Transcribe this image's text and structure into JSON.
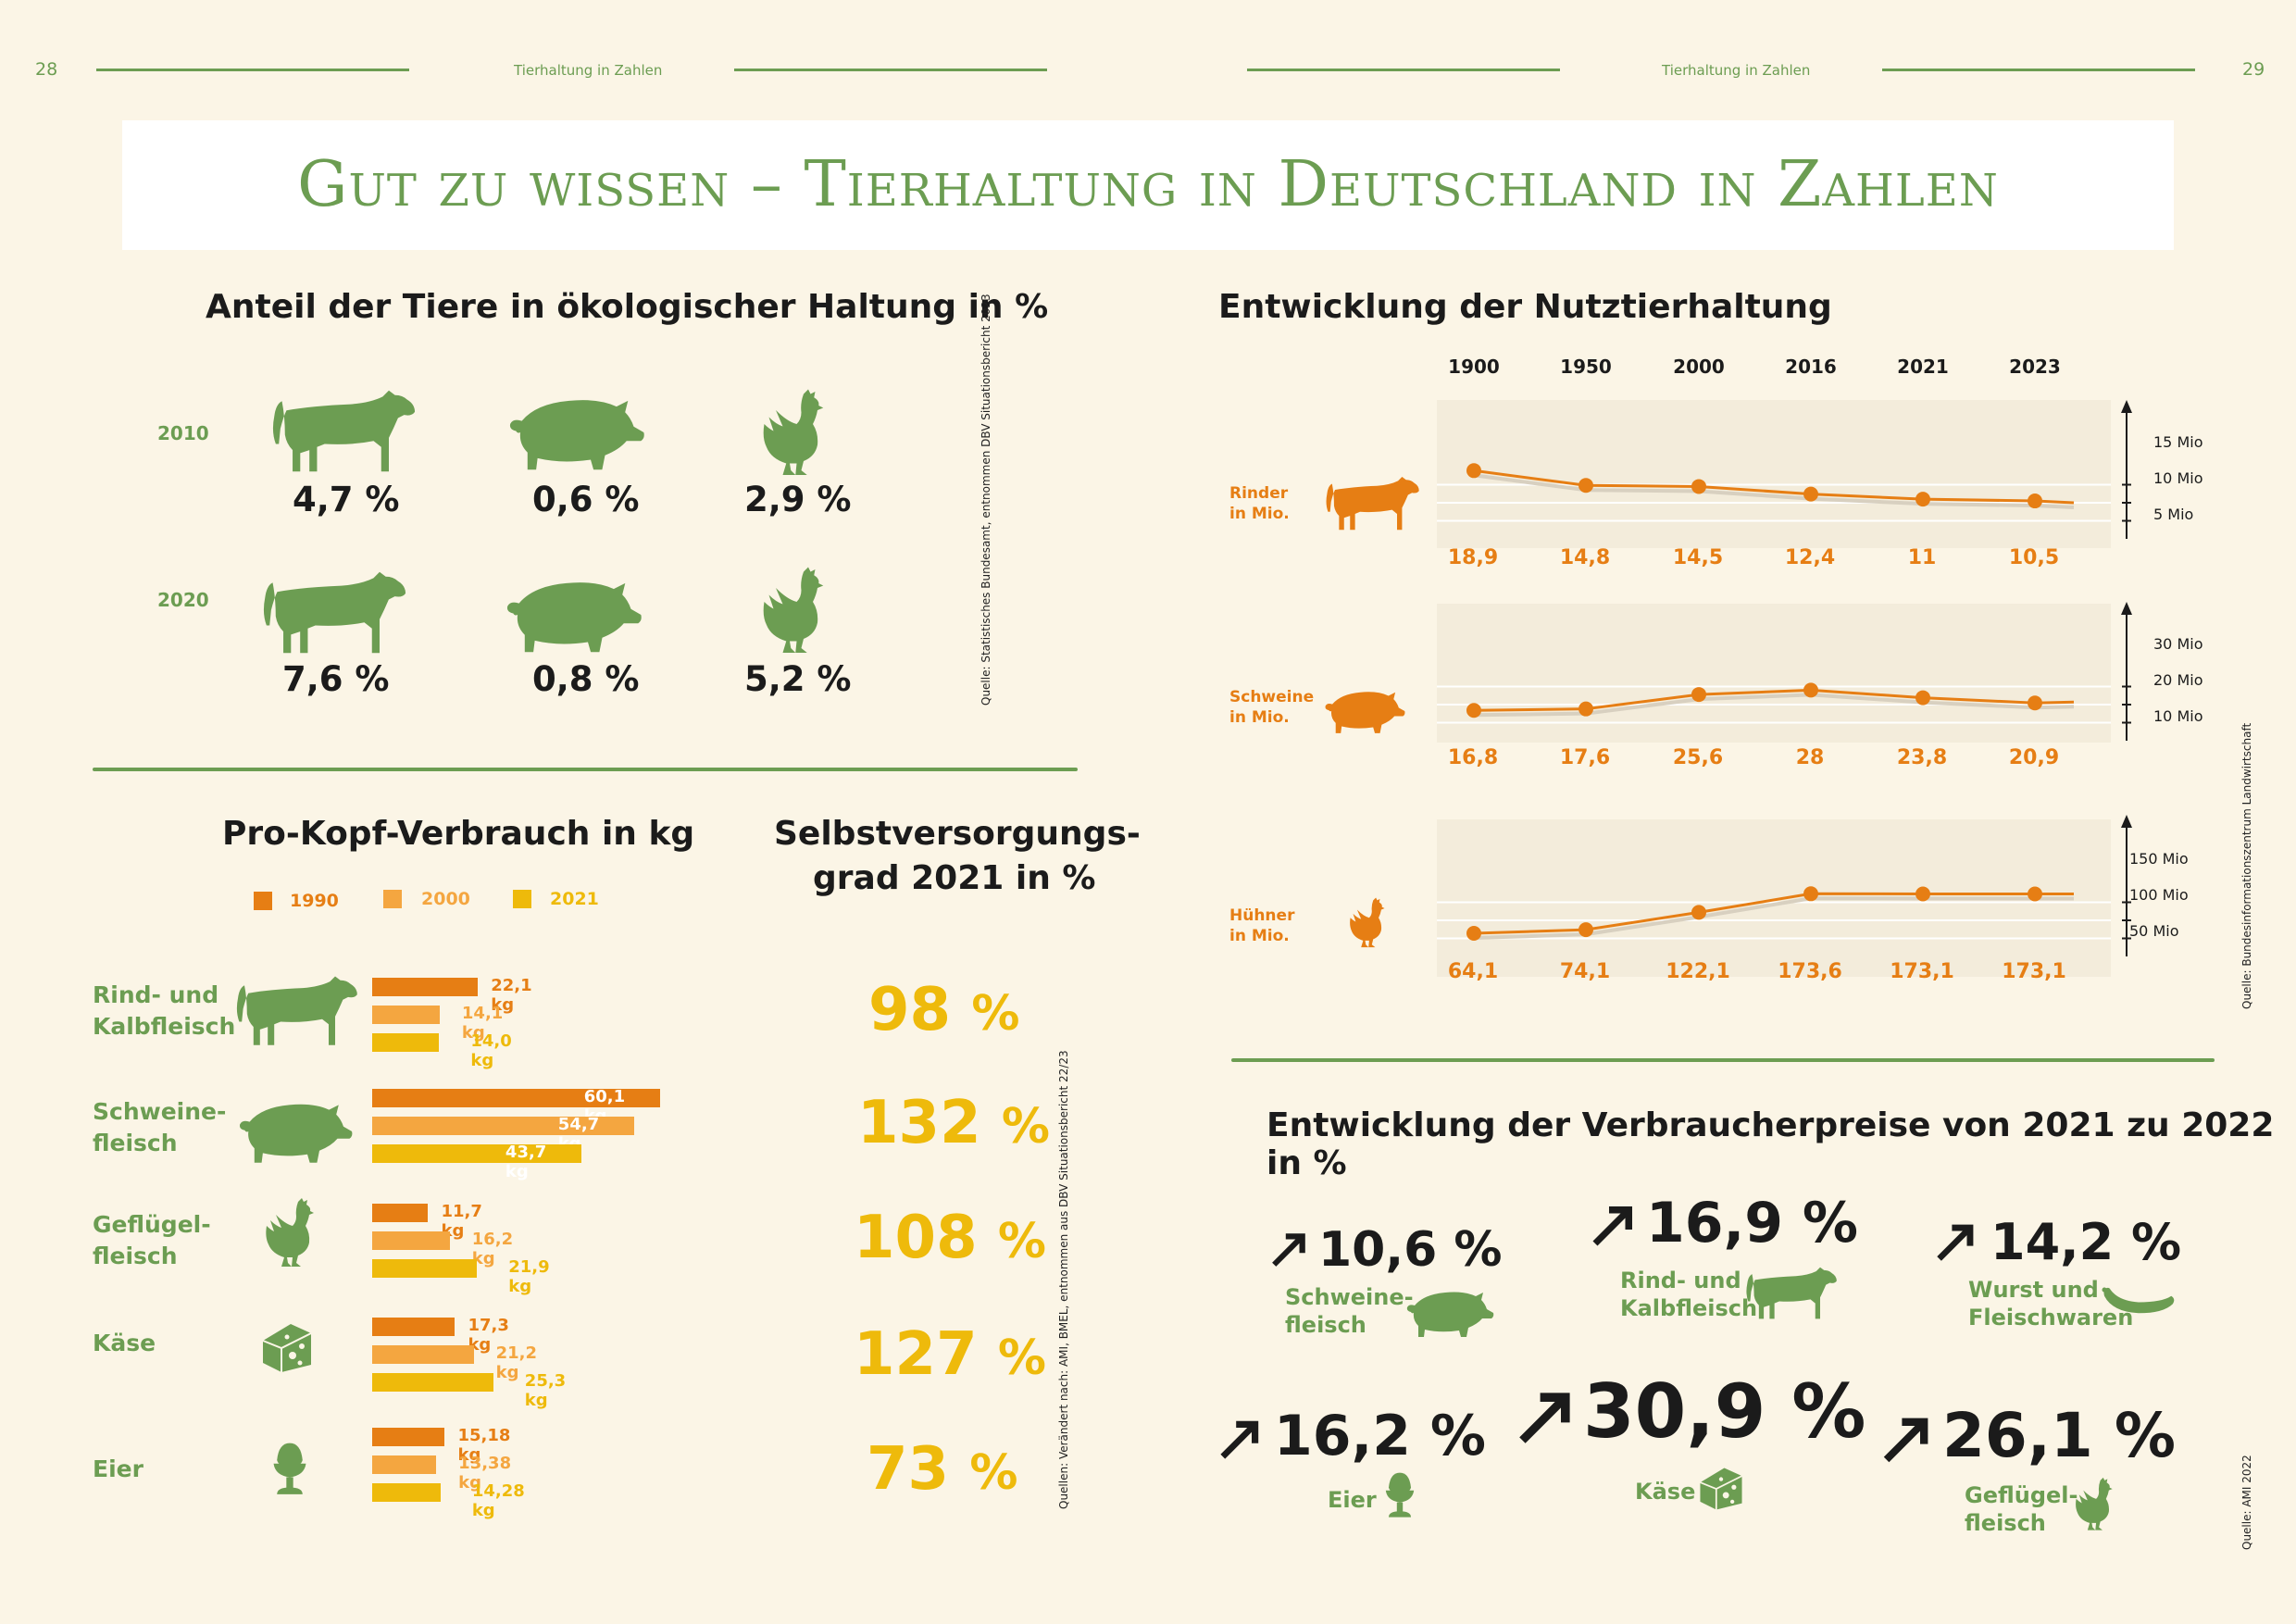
{
  "header": {
    "left_page": "28",
    "right_page": "29",
    "section_left": "Tierhaltung in Zahlen",
    "section_right": "Tierhaltung in Zahlen"
  },
  "title": "Gut zu wissen – Tierhaltung in Deutschland in Zahlen",
  "organic": {
    "heading": "Anteil der Tiere in ökologischer Haltung in %",
    "year_2010": "2010",
    "year_2020": "2020",
    "rows": [
      {
        "cattle": "4,7 %",
        "pig": "0,6 %",
        "chicken": "2,9 %"
      },
      {
        "cattle": "7,6 %",
        "pig": "0,8 %",
        "chicken": "5,2 %"
      }
    ],
    "source": "Quelle: Statistisches Bundesamt, entnommen DBV Situationsbericht 2023"
  },
  "consumption": {
    "heading": "Pro-Kopf-Verbrauch in kg",
    "legend": [
      "1990",
      "2000",
      "2021"
    ],
    "colors": [
      "#e67e14",
      "#f4a640",
      "#eeba0b"
    ],
    "self_heading_1": "Selbstversorgungs-",
    "self_heading_2": "grad 2021 in %",
    "items": [
      {
        "label_1": "Rind- und",
        "label_2": "Kalbfleisch",
        "values": [
          22.1,
          14.1,
          14.0
        ],
        "labels": [
          "22,1 kg",
          "14,1 kg",
          "14,0 kg"
        ],
        "self": "98",
        "unit": "%"
      },
      {
        "label_1": "Schweine-",
        "label_2": "fleisch",
        "values": [
          60.1,
          54.7,
          43.7
        ],
        "labels": [
          "60,1 kg",
          "54,7 kg",
          "43,7 kg"
        ],
        "self": "132",
        "unit": "%"
      },
      {
        "label_1": "Geflügel-",
        "label_2": "fleisch",
        "values": [
          11.7,
          16.2,
          21.9
        ],
        "labels": [
          "11,7 kg",
          "16,2 kg",
          "21,9 kg"
        ],
        "self": "108",
        "unit": "%"
      },
      {
        "label_1": "Käse",
        "label_2": "",
        "values": [
          17.3,
          21.2,
          25.3
        ],
        "labels": [
          "17,3 kg",
          "21,2 kg",
          "25,3 kg"
        ],
        "self": "127",
        "unit": "%"
      },
      {
        "label_1": "Eier",
        "label_2": "",
        "values": [
          15.18,
          13.38,
          14.28
        ],
        "labels": [
          "15,18 kg",
          "13,38 kg",
          "14,28 kg"
        ],
        "self": "73",
        "unit": "%"
      }
    ],
    "source": "Quellen: Verändert nach: AMI, BMEL, entnommen aus DBV Situationsbericht 22/23"
  },
  "livestock": {
    "heading": "Entwicklung der Nutztierhaltung",
    "years": [
      "1900",
      "1950",
      "2000",
      "2016",
      "2021",
      "2023"
    ],
    "source": "Quelle: Bundesinformationszentrum Landwirtschaft",
    "series": [
      {
        "label_1": "Rinder",
        "label_2": "in Mio.",
        "values": [
          18.9,
          14.8,
          14.5,
          12.4,
          11,
          10.5
        ],
        "labels": [
          "18,9",
          "14,8",
          "14,5",
          "12,4",
          "11",
          "10,5"
        ],
        "ticks": [
          "15 Mio",
          "10 Mio",
          "5 Mio"
        ]
      },
      {
        "label_1": "Schweine",
        "label_2": "in Mio.",
        "values": [
          16.8,
          17.6,
          25.6,
          28,
          23.8,
          20.9
        ],
        "labels": [
          "16,8",
          "17,6",
          "25,6",
          "28",
          "23,8",
          "20,9"
        ],
        "ticks": [
          "30 Mio",
          "20 Mio",
          "10 Mio"
        ]
      },
      {
        "label_1": "Hühner",
        "label_2": "in Mio.",
        "values": [
          64.1,
          74.1,
          122.1,
          173.6,
          173.1,
          173.1
        ],
        "labels": [
          "64,1",
          "74,1",
          "122,1",
          "173,6",
          "173,1",
          "173,1"
        ],
        "ticks": [
          "150 Mio",
          "100 Mio",
          "50 Mio"
        ]
      }
    ]
  },
  "prices": {
    "heading": "Entwicklung der Verbraucherpreise von 2021 zu 2022 in %",
    "source": "Quelle: AMI 2022",
    "items": [
      {
        "value": "10,6 %",
        "label_1": "Schweine-",
        "label_2": "fleisch"
      },
      {
        "value": "16,9 %",
        "label_1": "Rind- und",
        "label_2": "Kalbfleisch"
      },
      {
        "value": "14,2 %",
        "label_1": "Wurst und",
        "label_2": "Fleischwaren"
      },
      {
        "value": "16,2 %",
        "label_1": "Eier",
        "label_2": ""
      },
      {
        "value": "30,9 %",
        "label_1": "Käse",
        "label_2": ""
      },
      {
        "value": "26,1 %",
        "label_1": "Geflügel-",
        "label_2": "fleisch"
      }
    ]
  },
  "chart_data": [
    {
      "type": "bar",
      "title": "Pro-Kopf-Verbrauch in kg",
      "categories": [
        "Rind- und Kalbfleisch",
        "Schweinefleisch",
        "Geflügelfleisch",
        "Käse",
        "Eier"
      ],
      "series": [
        {
          "name": "1990",
          "values": [
            22.1,
            60.1,
            11.7,
            17.3,
            15.18
          ]
        },
        {
          "name": "2000",
          "values": [
            14.1,
            54.7,
            16.2,
            21.2,
            13.38
          ]
        },
        {
          "name": "2021",
          "values": [
            14.0,
            43.7,
            21.9,
            25.3,
            14.28
          ]
        }
      ]
    },
    {
      "type": "line",
      "title": "Entwicklung der Nutztierhaltung",
      "x": [
        "1900",
        "1950",
        "2000",
        "2016",
        "2021",
        "2023"
      ],
      "series": [
        {
          "name": "Rinder in Mio.",
          "values": [
            18.9,
            14.8,
            14.5,
            12.4,
            11,
            10.5
          ]
        },
        {
          "name": "Schweine in Mio.",
          "values": [
            16.8,
            17.6,
            25.6,
            28,
            23.8,
            20.9
          ]
        },
        {
          "name": "Hühner in Mio.",
          "values": [
            64.1,
            74.1,
            122.1,
            173.6,
            173.1,
            173.1
          ]
        }
      ]
    }
  ]
}
